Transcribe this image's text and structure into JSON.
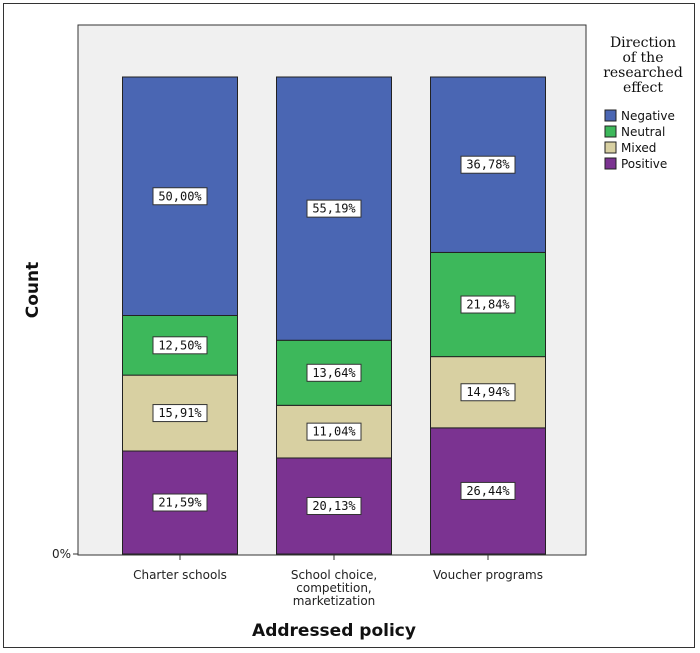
{
  "chart_data": {
    "type": "bar",
    "stacked": true,
    "percent_stacked": true,
    "xlabel": "Addressed policy",
    "ylabel": "Count",
    "y_tick_labels": [
      "0%"
    ],
    "categories": [
      [
        "Charter schools"
      ],
      [
        "School choice,",
        "competition,",
        "marketization"
      ],
      [
        "Voucher programs"
      ]
    ],
    "series": [
      {
        "name": "Positive",
        "color": "#7b3391",
        "values": [
          21.59,
          20.13,
          26.44
        ],
        "labels": [
          "21,59%",
          "20,13%",
          "26,44%"
        ]
      },
      {
        "name": "Mixed",
        "color": "#d8d0a2",
        "values": [
          15.91,
          11.04,
          14.94
        ],
        "labels": [
          "15,91%",
          "11,04%",
          "14,94%"
        ]
      },
      {
        "name": "Neutral",
        "color": "#3db85b",
        "values": [
          12.5,
          13.64,
          21.84
        ],
        "labels": [
          "12,50%",
          "13,64%",
          "21,84%"
        ]
      },
      {
        "name": "Negative",
        "color": "#4a66b3",
        "values": [
          50.0,
          55.19,
          36.78
        ],
        "labels": [
          "50,00%",
          "55,19%",
          "36,78%"
        ]
      }
    ],
    "legend": {
      "title": [
        "Direction",
        "of the",
        "researched",
        "effect"
      ],
      "entries": [
        "Negative",
        "Neutral",
        "Mixed",
        "Positive"
      ],
      "placement": "right"
    },
    "ylim": [
      0,
      100
    ],
    "plot_background": "#f0f0f0"
  }
}
